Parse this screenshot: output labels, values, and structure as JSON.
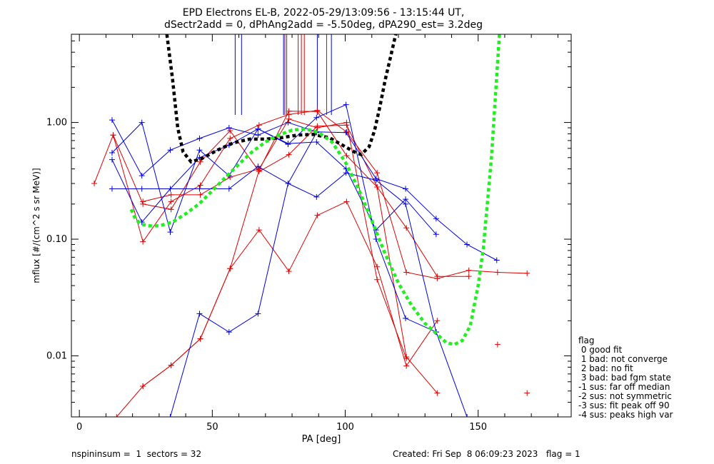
{
  "title_line1": "EPD Electrons EL-B, 2022-05-29/13:09:56 - 13:15:44 UT,",
  "title_line2": "dSectr2add = 0, dPhAng2add = -5.50deg, dPA290_est=   3.2deg",
  "footer_left": "nspininsum =  1  sectors = 32",
  "footer_right": "Created: Fri Sep  8 06:09:23 2023   flag = 1",
  "legend": {
    "title": "flag",
    "items": [
      " 0 good fit",
      " 1 bad: not converge",
      " 2 bad: no fit",
      " 3 bad: bad fgm state",
      "-1 sus: far off median",
      "-2 sus: not symmetric",
      "-3 sus: fit peak off 90",
      "-4 sus: peaks high var"
    ]
  },
  "colors": {
    "red": "#dd0000",
    "blue": "#0000dd",
    "black": "#000000",
    "green": "#22ee22",
    "purple": "#660088"
  },
  "chart_data": {
    "type": "line",
    "xlabel": "PA [deg]",
    "ylabel": "mflux [#/(cm^2 s sr MeV)]",
    "xlim": [
      -3,
      185
    ],
    "ylim": [
      0.003,
      5.7
    ],
    "yscale": "log",
    "xticks": [
      0,
      50,
      100,
      150
    ],
    "yticks": [
      0.01,
      0.1,
      1.0
    ],
    "ytick_labels": [
      "0.01",
      "0.10",
      "1.00"
    ],
    "series": [
      {
        "color": "red",
        "x": [
          5.6,
          12.7,
          23.9,
          34.5,
          45.5,
          56.7,
          67.6,
          78.8,
          89.5,
          100.5,
          112.0,
          123.0,
          134.6,
          146.5,
          157.3,
          168.4
        ],
        "y": [
          0.3,
          0.78,
          0.095,
          0.21,
          0.29,
          0.73,
          0.95,
          1.17,
          1.27,
          0.83,
          0.37,
          0.052,
          0.046,
          0.054,
          0.052,
          0.051
        ]
      },
      {
        "color": "red",
        "x": [
          12.7,
          23.9,
          34.5,
          45.5,
          56.7,
          67.6,
          78.8,
          89.5,
          100.5,
          112.0,
          123.0,
          134.6
        ],
        "y": [
          0.78,
          0.2,
          0.18,
          0.46,
          0.85,
          0.38,
          0.53,
          0.93,
          0.95,
          0.28,
          0.0098,
          0.0048
        ]
      },
      {
        "color": "red",
        "x": [
          23.9,
          34.5,
          45.5,
          56.7,
          67.6,
          78.8,
          89.5,
          100.5,
          112.0,
          123.0,
          134.6
        ],
        "y": [
          0.0055,
          0.0083,
          0.014,
          0.056,
          0.12,
          0.053,
          0.16,
          0.21,
          0.058,
          0.0082,
          0.02
        ]
      },
      {
        "color": "red",
        "x": [
          14.0,
          23.9,
          34.5,
          45.5,
          56.7,
          67.6,
          78.8,
          89.5,
          100.5,
          112.0,
          123.0,
          134.6,
          146.5
        ],
        "y": [
          0.003,
          0.0055,
          0.0083,
          0.014,
          0.056,
          0.39,
          1.25,
          1.24,
          0.52,
          0.28,
          0.125,
          0.048,
          0.048
        ]
      },
      {
        "color": "red",
        "x": [
          23.9,
          34.5,
          45.5,
          56.7,
          67.6,
          78.8,
          89.5,
          100.5,
          112.0,
          123.0
        ],
        "y": [
          0.21,
          0.24,
          0.24,
          0.34,
          0.4,
          1.07,
          0.9,
          1.0,
          0.045,
          0.0095
        ]
      },
      {
        "color": "red",
        "x": [
          157.3
        ],
        "y": [
          0.0125
        ]
      },
      {
        "color": "red",
        "x": [
          168.4
        ],
        "y": [
          0.0048
        ]
      },
      {
        "color": "blue",
        "x": [
          12.3,
          23.5,
          34.2,
          45.2,
          56.3,
          67.2,
          78.5,
          89.2,
          100.3,
          111.6,
          122.7,
          134.2,
          145.8,
          157.0
        ],
        "y": [
          1.05,
          0.35,
          0.58,
          0.73,
          0.9,
          0.78,
          1.0,
          0.83,
          0.82,
          0.33,
          0.27,
          0.15,
          0.09,
          0.066
        ]
      },
      {
        "color": "blue",
        "x": [
          12.3,
          23.5,
          34.2,
          45.2,
          56.3,
          67.2,
          78.5,
          89.2,
          100.3,
          111.6,
          122.7,
          134.2
        ],
        "y": [
          0.55,
          1.0,
          0.115,
          0.58,
          0.35,
          0.88,
          0.65,
          1.1,
          1.42,
          0.1,
          0.021,
          0.016
        ]
      },
      {
        "color": "blue",
        "x": [
          12.3,
          23.5,
          34.2,
          45.2,
          56.3,
          67.2,
          78.5,
          89.2,
          100.3,
          111.6,
          122.7,
          134.2
        ],
        "y": [
          0.48,
          0.14,
          0.27,
          0.5,
          0.64,
          0.88,
          0.66,
          0.68,
          0.4,
          0.12,
          0.22,
          0.11
        ]
      },
      {
        "color": "blue",
        "x": [
          12.3,
          23.5,
          34.2,
          45.2,
          56.3,
          67.2,
          78.5,
          89.2,
          100.3,
          111.6,
          122.7,
          134.2,
          145.8
        ],
        "y": [
          0.27,
          0.27,
          0.27,
          0.27,
          0.27,
          0.42,
          0.3,
          0.23,
          0.37,
          0.32,
          0.2,
          0.016,
          0.003
        ]
      },
      {
        "color": "blue",
        "x": [
          34.2,
          45.2,
          56.3,
          67.2,
          78.5,
          89.2
        ],
        "y": [
          0.003,
          0.023,
          0.016,
          0.023,
          0.3,
          0.82
        ]
      },
      {
        "color": "black",
        "dashed": true,
        "x": [
          32.9,
          35,
          37,
          39,
          42,
          46,
          52,
          58,
          64,
          70,
          76,
          82,
          88,
          94,
          100,
          104,
          106,
          109,
          111,
          113,
          115,
          117,
          119
        ],
        "y": [
          5.7,
          2.4,
          0.9,
          0.56,
          0.46,
          0.49,
          0.58,
          0.67,
          0.72,
          0.72,
          0.74,
          0.78,
          0.79,
          0.74,
          0.62,
          0.55,
          0.53,
          0.62,
          0.85,
          1.35,
          2.3,
          3.6,
          5.7
        ]
      },
      {
        "color": "green",
        "dashed": true,
        "x": [
          19.5,
          21,
          23,
          26,
          30,
          35,
          40,
          45,
          50,
          55,
          60,
          65,
          70,
          75,
          80,
          85,
          90,
          95,
          100,
          105,
          110,
          115,
          120,
          125,
          130,
          135,
          138,
          141,
          144,
          147,
          150,
          152,
          155,
          158
        ],
        "y": [
          0.18,
          0.15,
          0.135,
          0.13,
          0.13,
          0.14,
          0.165,
          0.2,
          0.26,
          0.34,
          0.44,
          0.56,
          0.68,
          0.78,
          0.86,
          0.88,
          0.82,
          0.68,
          0.46,
          0.27,
          0.145,
          0.075,
          0.042,
          0.027,
          0.019,
          0.015,
          0.013,
          0.0125,
          0.0135,
          0.018,
          0.04,
          0.085,
          0.5,
          5.7
        ]
      }
    ],
    "vertical_markers": [
      {
        "color": "blue",
        "x": 58.6
      },
      {
        "color": "blue",
        "x": 61.0
      },
      {
        "color": "blue",
        "x": 76.8
      },
      {
        "color": "purple",
        "x": 77.3
      },
      {
        "color": "red",
        "x": 78.0
      },
      {
        "color": "red",
        "x": 82.3
      },
      {
        "color": "red",
        "x": 83.5
      },
      {
        "color": "red",
        "x": 84.6
      },
      {
        "color": "blue",
        "x": 89.5
      },
      {
        "color": "red",
        "x": 93.0
      },
      {
        "color": "blue",
        "x": 94.8
      }
    ]
  }
}
